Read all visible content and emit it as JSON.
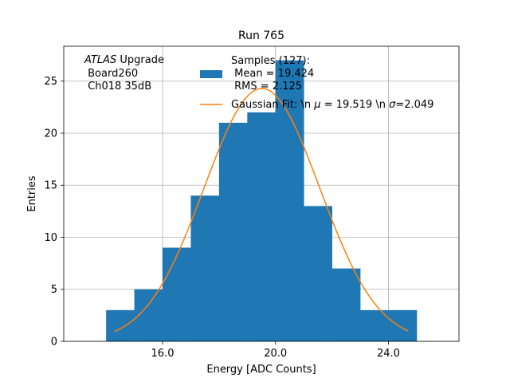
{
  "chart_data": {
    "type": "bar",
    "title": "Run 765",
    "xlabel": "Energy [ADC Counts]",
    "ylabel": "Entries",
    "xlim": [
      12.5,
      26.5
    ],
    "ylim": [
      0,
      28.35
    ],
    "grid": true,
    "xticks": [
      16.0,
      20.0,
      24.0
    ],
    "xtick_labels": [
      "16.0",
      "20.0",
      "24.0"
    ],
    "yticks": [
      0,
      5,
      10,
      15,
      20,
      25
    ],
    "ytick_labels": [
      "0",
      "5",
      "10",
      "15",
      "20",
      "25"
    ],
    "histogram": {
      "bin_edges": [
        14,
        15,
        16,
        17,
        18,
        19,
        20,
        21,
        22,
        23,
        24,
        25
      ],
      "counts": [
        3,
        5,
        9,
        14,
        21,
        22,
        27,
        13,
        7,
        3,
        3
      ],
      "color": "#1f77b4"
    },
    "fit": {
      "mu": 19.519,
      "sigma": 2.049,
      "amplitude": 24.3,
      "x_range": [
        14.3,
        24.7
      ],
      "color": "#ff7f0e"
    },
    "atlas_label": {
      "italic": "ATLAS",
      "rest": " Upgrade",
      "line2": " Board260",
      "line3": " Ch018 35dB"
    },
    "legend": {
      "position": "top-center",
      "hist_label": {
        "line1": "Samples (127):",
        "line2": " Mean = 19.424",
        "line3": " RMS = 2.125"
      },
      "fit_label": {
        "prefix": "Gaussian Fit: \\n ",
        "mu_sym": "μ",
        "mid": " = 19.519 \\n ",
        "sigma_sym": "σ",
        "suffix": "=2.049"
      }
    }
  }
}
